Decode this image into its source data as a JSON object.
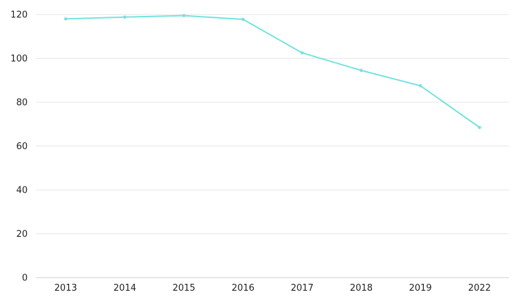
{
  "chart_data": {
    "type": "line",
    "title": "",
    "xlabel": "",
    "ylabel": "",
    "categories": [
      "2013",
      "2014",
      "2015",
      "2016",
      "2017",
      "2018",
      "2019",
      "2022"
    ],
    "series": [
      {
        "values": [
          118,
          118.8,
          119.5,
          117.8,
          102.5,
          94.5,
          87.5,
          68.5
        ],
        "color": "#74e2e0"
      }
    ],
    "ylim": [
      0,
      120
    ],
    "yticks": [
      0,
      20,
      40,
      60,
      80,
      100,
      120
    ],
    "grid": true,
    "legend": "none"
  }
}
